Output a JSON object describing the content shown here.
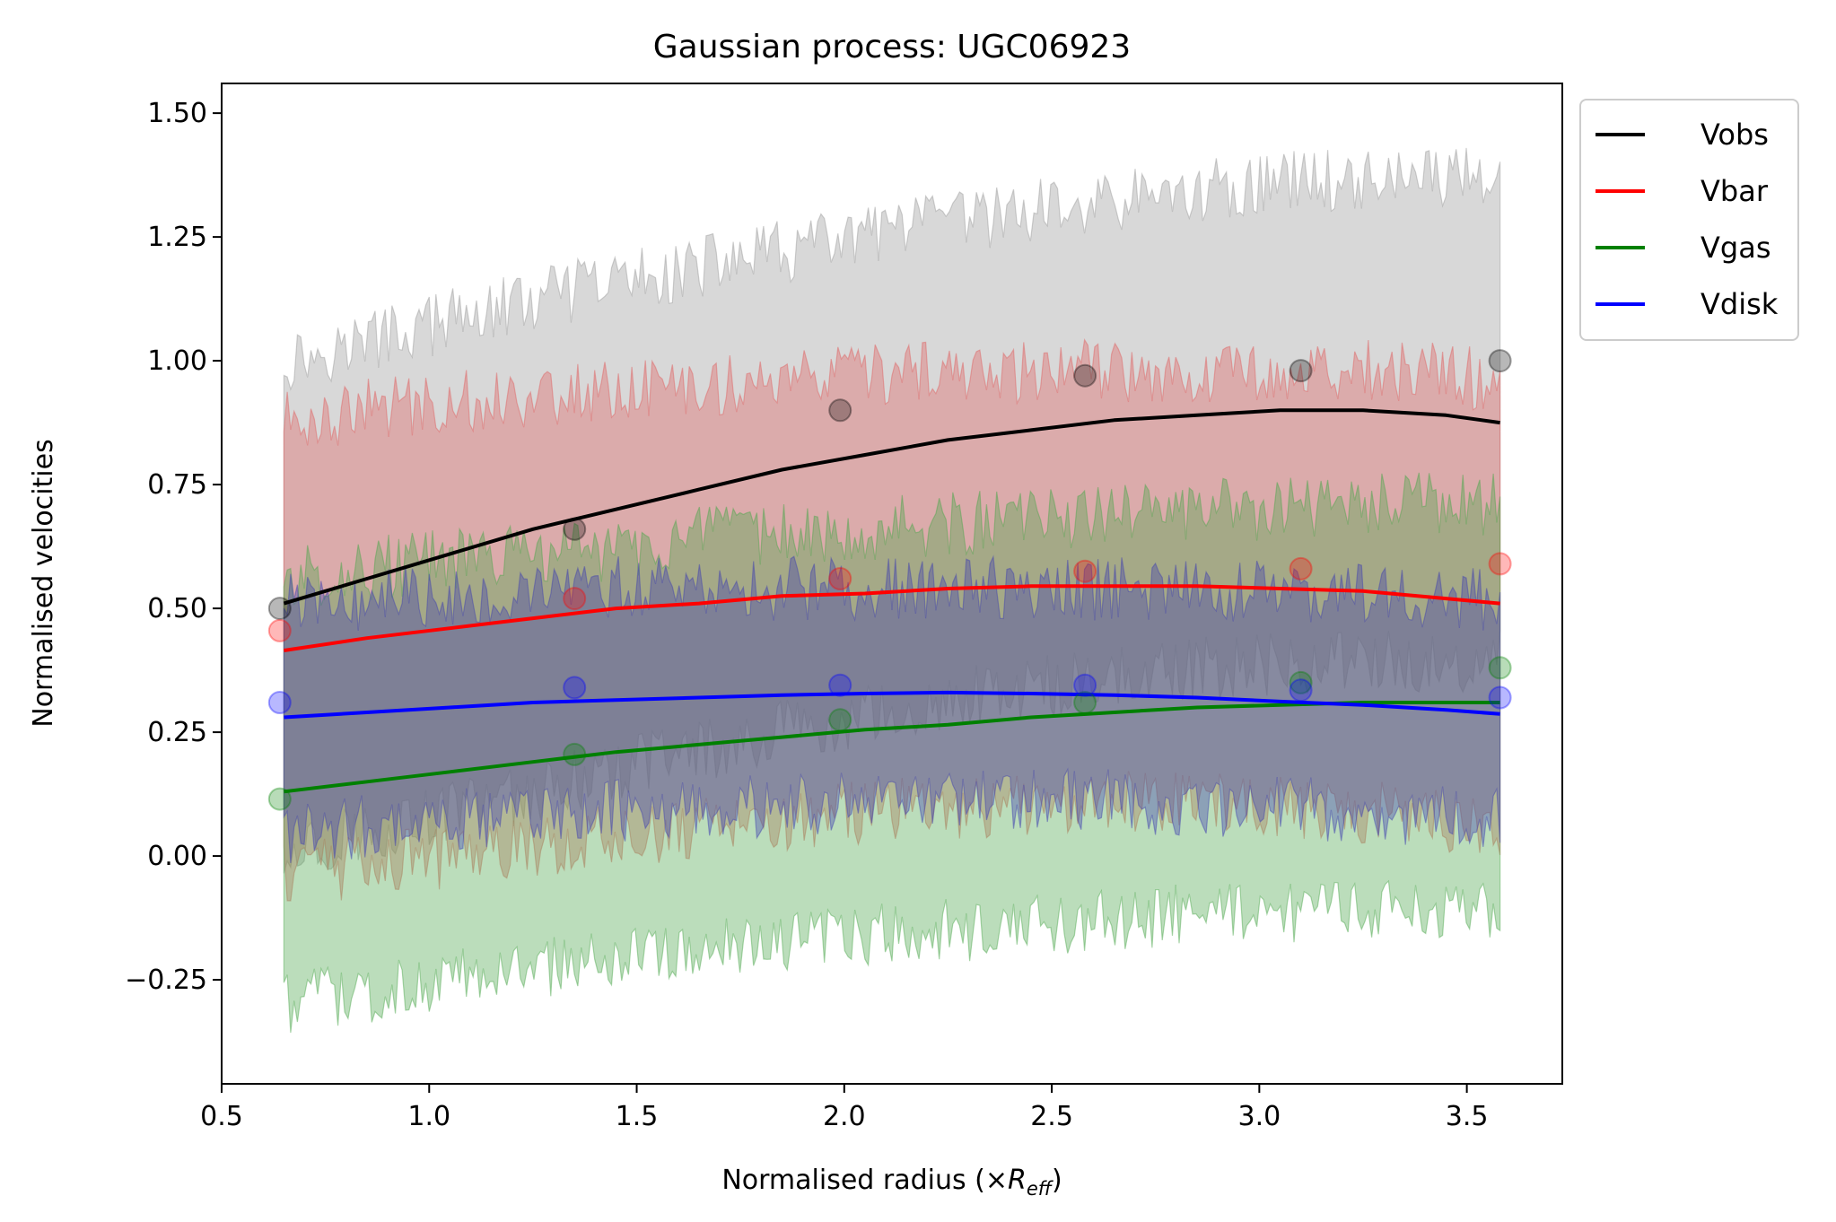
{
  "chart_data": {
    "type": "line",
    "title": "Gaussian process: UGC06923",
    "xlabel_main": "Normalised radius (×",
    "xlabel_sym": "R",
    "xlabel_sub": "eff",
    "xlabel_close": ")",
    "ylabel": "Normalised velocities",
    "xlim": [
      0.5,
      3.73
    ],
    "ylim": [
      -0.46,
      1.56
    ],
    "xticks": [
      0.5,
      1.0,
      1.5,
      2.0,
      2.5,
      3.0,
      3.5
    ],
    "xtick_labels": [
      "0.5",
      "1.0",
      "1.5",
      "2.0",
      "2.5",
      "3.0",
      "3.5"
    ],
    "yticks": [
      -0.25,
      0.0,
      0.25,
      0.5,
      0.75,
      1.0,
      1.25,
      1.5
    ],
    "ytick_labels": [
      "−0.25",
      "0.00",
      "0.25",
      "0.50",
      "0.75",
      "1.00",
      "1.25",
      "1.50"
    ],
    "legend_position": "outside-top-right",
    "grid": false,
    "observed_x": [
      0.64,
      1.35,
      1.99,
      2.58,
      3.1,
      3.58
    ],
    "series": [
      {
        "name": "Vobs",
        "color": "#000000",
        "band_color": "#999999",
        "x": [
          0.65,
          0.85,
          1.05,
          1.25,
          1.45,
          1.65,
          1.85,
          2.05,
          2.25,
          2.45,
          2.65,
          2.85,
          3.05,
          3.25,
          3.45,
          3.58
        ],
        "mean": [
          0.51,
          0.56,
          0.61,
          0.66,
          0.7,
          0.74,
          0.78,
          0.81,
          0.84,
          0.86,
          0.88,
          0.89,
          0.9,
          0.9,
          0.89,
          0.875
        ],
        "upper": [
          1.0,
          1.04,
          1.08,
          1.12,
          1.16,
          1.19,
          1.22,
          1.25,
          1.28,
          1.3,
          1.32,
          1.34,
          1.36,
          1.37,
          1.37,
          1.38
        ],
        "lower": [
          0.02,
          0.05,
          0.09,
          0.13,
          0.17,
          0.21,
          0.25,
          0.28,
          0.31,
          0.34,
          0.36,
          0.38,
          0.39,
          0.39,
          0.39,
          0.39
        ],
        "points": [
          0.5,
          0.66,
          0.9,
          0.97,
          0.98,
          1.0
        ]
      },
      {
        "name": "Vbar",
        "color": "#ff0000",
        "band_color": "#e06060",
        "x": [
          0.65,
          0.85,
          1.05,
          1.25,
          1.45,
          1.65,
          1.85,
          2.05,
          2.25,
          2.45,
          2.65,
          2.85,
          3.05,
          3.25,
          3.45,
          3.58
        ],
        "mean": [
          0.415,
          0.44,
          0.46,
          0.48,
          0.5,
          0.51,
          0.525,
          0.53,
          0.54,
          0.545,
          0.545,
          0.545,
          0.54,
          0.535,
          0.52,
          0.51
        ],
        "upper": [
          0.88,
          0.9,
          0.92,
          0.93,
          0.94,
          0.95,
          0.96,
          0.97,
          0.975,
          0.98,
          0.98,
          0.98,
          0.98,
          0.98,
          0.97,
          0.96
        ],
        "lower": [
          -0.04,
          -0.02,
          0.0,
          0.02,
          0.04,
          0.06,
          0.07,
          0.09,
          0.1,
          0.1,
          0.11,
          0.11,
          0.1,
          0.09,
          0.07,
          0.06
        ],
        "points": [
          0.455,
          0.52,
          0.56,
          0.575,
          0.58,
          0.59
        ]
      },
      {
        "name": "Vgas",
        "color": "#008000",
        "band_color": "#4ca64c",
        "x": [
          0.65,
          0.85,
          1.05,
          1.25,
          1.45,
          1.65,
          1.85,
          2.05,
          2.25,
          2.45,
          2.65,
          2.85,
          3.05,
          3.25,
          3.45,
          3.58
        ],
        "mean": [
          0.13,
          0.15,
          0.17,
          0.19,
          0.21,
          0.225,
          0.24,
          0.255,
          0.265,
          0.28,
          0.29,
          0.3,
          0.305,
          0.31,
          0.31,
          0.31
        ],
        "upper": [
          0.56,
          0.58,
          0.6,
          0.61,
          0.62,
          0.64,
          0.65,
          0.66,
          0.67,
          0.68,
          0.69,
          0.7,
          0.7,
          0.71,
          0.71,
          0.71
        ],
        "lower": [
          -0.3,
          -0.28,
          -0.25,
          -0.23,
          -0.21,
          -0.19,
          -0.18,
          -0.16,
          -0.15,
          -0.14,
          -0.13,
          -0.12,
          -0.11,
          -0.11,
          -0.11,
          -0.1
        ],
        "points": [
          0.115,
          0.205,
          0.275,
          0.31,
          0.35,
          0.38
        ]
      },
      {
        "name": "Vdisk",
        "color": "#0000ff",
        "band_color": "#4040b0",
        "x": [
          0.65,
          0.85,
          1.05,
          1.25,
          1.45,
          1.65,
          1.85,
          2.05,
          2.25,
          2.45,
          2.65,
          2.85,
          3.05,
          3.25,
          3.45,
          3.58
        ],
        "mean": [
          0.28,
          0.29,
          0.3,
          0.31,
          0.315,
          0.32,
          0.325,
          0.328,
          0.33,
          0.328,
          0.325,
          0.32,
          0.312,
          0.305,
          0.295,
          0.287
        ],
        "upper": [
          0.51,
          0.52,
          0.53,
          0.53,
          0.54,
          0.54,
          0.54,
          0.54,
          0.54,
          0.54,
          0.54,
          0.54,
          0.53,
          0.53,
          0.52,
          0.52
        ],
        "lower": [
          0.05,
          0.06,
          0.07,
          0.08,
          0.09,
          0.1,
          0.1,
          0.11,
          0.11,
          0.11,
          0.11,
          0.1,
          0.1,
          0.09,
          0.08,
          0.07
        ],
        "points": [
          0.31,
          0.34,
          0.345,
          0.345,
          0.335,
          0.32
        ]
      }
    ]
  }
}
